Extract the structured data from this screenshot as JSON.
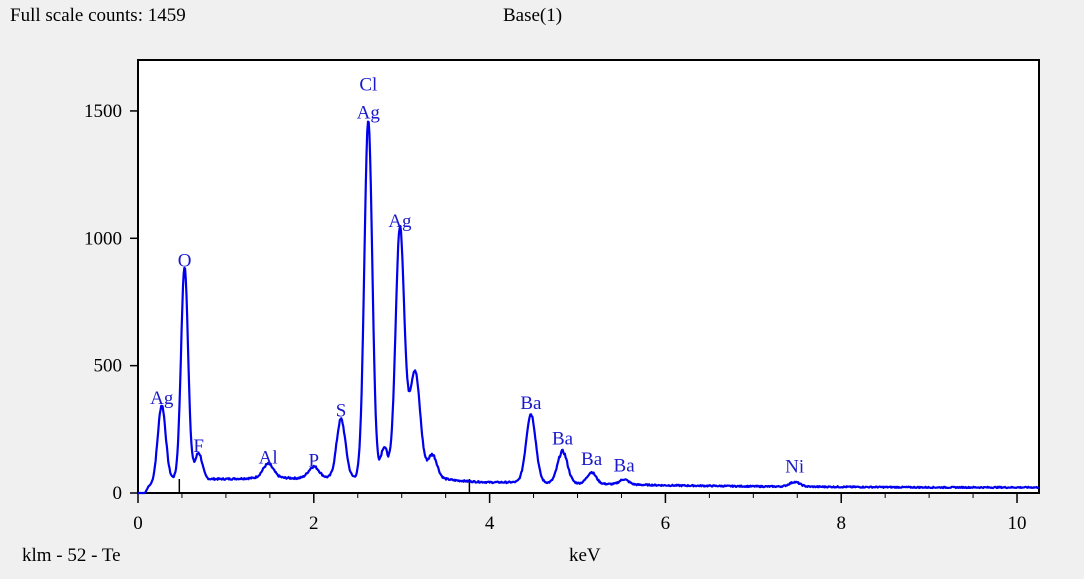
{
  "header": {
    "full_scale": "Full scale counts: 1459",
    "spectrum_name": "Base(1)"
  },
  "footer": {
    "sample_label": "klm - 52 - Te",
    "x_unit": "keV"
  },
  "colors": {
    "spectrum": "#0000ee",
    "label": "#1a1acc",
    "axis": "#000000",
    "plot_bg": "#ffffff",
    "page_bg": "#f0f0f0",
    "marker": "#000000"
  },
  "chart_data": {
    "type": "line",
    "title": "",
    "xlabel": "keV",
    "ylabel": "",
    "xlim": [
      0,
      10.25
    ],
    "ylim": [
      0,
      1700
    ],
    "x_ticks": [
      0,
      2,
      4,
      6,
      8,
      10
    ],
    "x_minor_step": 0.5,
    "y_ticks": [
      0,
      500,
      1000,
      1500
    ],
    "grid": false,
    "legend": "none",
    "full_scale_counts": 1459,
    "markers_kev": [
      0.47,
      3.77
    ],
    "background": [
      [
        0,
        0
      ],
      [
        0.08,
        0
      ],
      [
        0.12,
        25
      ],
      [
        0.2,
        40
      ],
      [
        0.4,
        55
      ],
      [
        0.6,
        60
      ],
      [
        0.8,
        55
      ],
      [
        1.0,
        55
      ],
      [
        1.3,
        58
      ],
      [
        1.6,
        60
      ],
      [
        1.8,
        58
      ],
      [
        2.2,
        60
      ],
      [
        2.5,
        60
      ],
      [
        3.4,
        60
      ],
      [
        3.6,
        50
      ],
      [
        3.8,
        45
      ],
      [
        4.0,
        42
      ],
      [
        4.3,
        42
      ],
      [
        4.6,
        40
      ],
      [
        5.0,
        38
      ],
      [
        5.5,
        34
      ],
      [
        6.0,
        30
      ],
      [
        6.5,
        28
      ],
      [
        7.0,
        26
      ],
      [
        7.5,
        25
      ],
      [
        8.0,
        24
      ],
      [
        9.0,
        22
      ],
      [
        10.25,
        22
      ]
    ],
    "peaks": [
      {
        "label": "Ag",
        "center": 0.27,
        "height": 300,
        "width": 0.045
      },
      {
        "label": "O",
        "center": 0.53,
        "height": 830,
        "width": 0.04
      },
      {
        "label": "F",
        "center": 0.69,
        "height": 100,
        "width": 0.04
      },
      {
        "label": "Al",
        "center": 1.48,
        "height": 55,
        "width": 0.06
      },
      {
        "label": "P",
        "center": 2.0,
        "height": 45,
        "width": 0.06
      },
      {
        "label": "S",
        "center": 2.31,
        "height": 230,
        "width": 0.05
      },
      {
        "label": "Cl",
        "center": 2.62,
        "height": 1400,
        "width": 0.045
      },
      {
        "label": "",
        "center": 2.8,
        "height": 120,
        "width": 0.04
      },
      {
        "label": "Ag",
        "center": 2.98,
        "height": 980,
        "width": 0.05
      },
      {
        "label": "",
        "center": 3.15,
        "height": 420,
        "width": 0.06
      },
      {
        "label": "",
        "center": 3.35,
        "height": 90,
        "width": 0.05
      },
      {
        "label": "Ba",
        "center": 4.47,
        "height": 270,
        "width": 0.055
      },
      {
        "label": "Ba",
        "center": 4.83,
        "height": 125,
        "width": 0.055
      },
      {
        "label": "Ba",
        "center": 5.16,
        "height": 45,
        "width": 0.05
      },
      {
        "label": "Ba",
        "center": 5.53,
        "height": 20,
        "width": 0.05
      },
      {
        "label": "Ni",
        "center": 7.47,
        "height": 18,
        "width": 0.06
      }
    ],
    "peak_labels": [
      {
        "text": "Ag",
        "kev": 0.27,
        "counts": 350
      },
      {
        "text": "O",
        "kev": 0.53,
        "counts": 890
      },
      {
        "text": "F",
        "kev": 0.69,
        "counts": 160
      },
      {
        "text": "Al",
        "kev": 1.48,
        "counts": 115
      },
      {
        "text": "P",
        "kev": 2.0,
        "counts": 105
      },
      {
        "text": "S",
        "kev": 2.31,
        "counts": 300
      },
      {
        "text": "Cl",
        "kev": 2.62,
        "counts": 1580
      },
      {
        "text": "Ag",
        "kev": 2.62,
        "counts": 1470
      },
      {
        "text": "Ag",
        "kev": 2.98,
        "counts": 1045
      },
      {
        "text": "Ba",
        "kev": 4.47,
        "counts": 330
      },
      {
        "text": "Ba",
        "kev": 4.83,
        "counts": 190
      },
      {
        "text": "Ba",
        "kev": 5.16,
        "counts": 110
      },
      {
        "text": "Ba",
        "kev": 5.53,
        "counts": 85
      },
      {
        "text": "Ni",
        "kev": 7.47,
        "counts": 80
      }
    ]
  }
}
